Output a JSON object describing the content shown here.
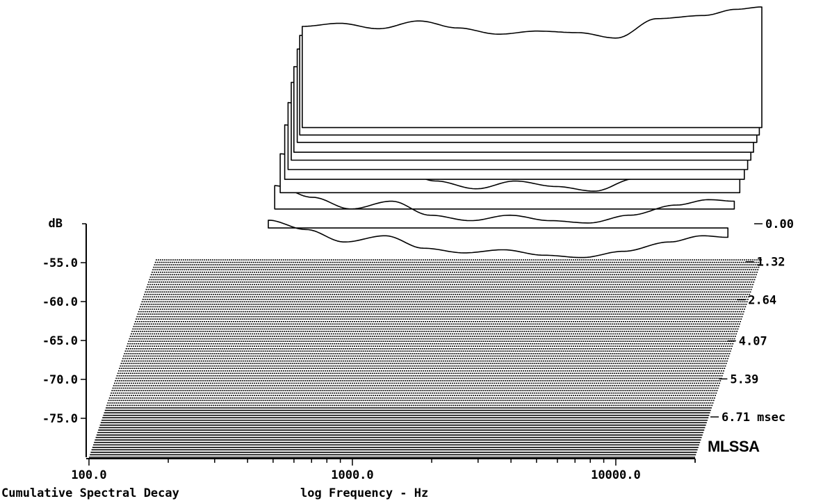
{
  "chart_data": {
    "type": "waterfall",
    "title": "Cumulative Spectral Decay",
    "xlabel": "log Frequency - Hz",
    "ylabel": "dB",
    "zlabel": "msec",
    "brand": "MLSSA",
    "x_scale": "log",
    "xlim": [
      100,
      20000
    ],
    "x_ticks": [
      {
        "value": 100,
        "label": "100.0"
      },
      {
        "value": 1000,
        "label": "1000.0"
      },
      {
        "value": 10000,
        "label": "10000.0"
      }
    ],
    "ylim": [
      -80,
      -50
    ],
    "y_ticks": [
      {
        "value": -55,
        "label": "-55.0"
      },
      {
        "value": -60,
        "label": "-60.0"
      },
      {
        "value": -65,
        "label": "-65.0"
      },
      {
        "value": -70,
        "label": "-70.0"
      },
      {
        "value": -75,
        "label": "-75.0"
      }
    ],
    "time_ticks": [
      {
        "value": 0.0,
        "label": "0.00"
      },
      {
        "value": 1.32,
        "label": "1.32"
      },
      {
        "value": 2.64,
        "label": "2.64"
      },
      {
        "value": 4.07,
        "label": "4.07"
      },
      {
        "value": 5.39,
        "label": "5.39"
      },
      {
        "value": 6.71,
        "label": "6.71 msec"
      }
    ],
    "time_range": [
      0,
      8.0
    ],
    "series": [
      {
        "time": 0.0,
        "x": [
          360,
          500,
          700,
          1000,
          1400,
          2000,
          2800,
          4000,
          5600,
          8000,
          12000,
          16000,
          20000
        ],
        "y": [
          -50.0,
          -49.6,
          -50.3,
          -49.3,
          -50.2,
          -51.0,
          -50.6,
          -50.8,
          -51.5,
          -49.0,
          -48.6,
          -47.8,
          -47.5
        ]
      },
      {
        "time": 0.3,
        "x": [
          360,
          500,
          700,
          1000,
          1400,
          2000,
          2800,
          4000,
          5600,
          8000,
          12000,
          16000,
          20000
        ],
        "y": [
          -50.2,
          -50.4,
          -51.4,
          -50.6,
          -52.1,
          -52.8,
          -51.9,
          -52.3,
          -53.0,
          -50.5,
          -50.8,
          -50.1,
          -50.0
        ]
      },
      {
        "time": 0.6,
        "x": [
          360,
          500,
          700,
          1000,
          1400,
          2000,
          2800,
          4000,
          5600,
          8000,
          12000,
          16000,
          20000
        ],
        "y": [
          -51.0,
          -51.5,
          -52.6,
          -51.6,
          -53.2,
          -54.0,
          -53.1,
          -53.5,
          -54.1,
          -51.5,
          -52.4,
          -51.5,
          -51.6
        ]
      },
      {
        "time": 1.0,
        "x": [
          360,
          500,
          700,
          1000,
          1400,
          2000,
          2800,
          4000,
          5600,
          8000,
          12000,
          16000,
          20000
        ],
        "y": [
          -52.0,
          -52.6,
          -54.2,
          -53.0,
          -55.0,
          -55.6,
          -54.6,
          -55.2,
          -55.8,
          -53.2,
          -54.6,
          -53.6,
          -54.0
        ]
      },
      {
        "time": 1.32,
        "x": [
          360,
          500,
          700,
          1000,
          1400,
          2000,
          2800,
          4000,
          5600,
          8000,
          12000,
          16000,
          20000
        ],
        "y": [
          -53.0,
          -54.0,
          -56.1,
          -54.8,
          -57.0,
          -57.6,
          -56.0,
          -56.8,
          -57.6,
          -55.0,
          -56.2,
          -55.0,
          -55.8
        ]
      },
      {
        "time": 1.7,
        "x": [
          360,
          500,
          700,
          1000,
          1400,
          2000,
          2800,
          4000,
          5600,
          8000,
          12000,
          16000,
          20000
        ],
        "y": [
          -54.4,
          -55.8,
          -58.2,
          -56.7,
          -58.8,
          -59.6,
          -57.8,
          -58.8,
          -59.5,
          -57.0,
          -57.8,
          -56.4,
          -57.4
        ]
      },
      {
        "time": 2.1,
        "x": [
          360,
          500,
          700,
          1000,
          1400,
          2000,
          2800,
          4000,
          5600,
          8000,
          12000,
          16000,
          20000
        ],
        "y": [
          -56.0,
          -57.8,
          -59.8,
          -58.2,
          -60.2,
          -61.0,
          -59.8,
          -60.6,
          -61.2,
          -59.0,
          -59.0,
          -58.0,
          -58.8
        ]
      },
      {
        "time": 2.64,
        "x": [
          360,
          500,
          700,
          1000,
          1400,
          2000,
          2800,
          4000,
          5600,
          8000,
          12000,
          16000,
          20000
        ],
        "y": [
          -58.0,
          -59.5,
          -61.0,
          -60.0,
          -61.5,
          -62.5,
          -61.5,
          -62.2,
          -62.8,
          -61.2,
          -60.4,
          -59.6,
          -60.0
        ]
      },
      {
        "time": 3.3,
        "x": [
          360,
          500,
          700,
          1000,
          1400,
          2000,
          2800,
          4000,
          5600,
          8000,
          12000,
          16000,
          20000
        ],
        "y": [
          -60.0,
          -61.5,
          -63.0,
          -62.0,
          -63.8,
          -64.5,
          -63.8,
          -64.5,
          -64.8,
          -63.8,
          -62.5,
          -61.8,
          -62.0
        ]
      },
      {
        "time": 4.07,
        "x": [
          360,
          500,
          700,
          1000,
          1400,
          2000,
          2800,
          4000,
          5600,
          8000,
          12000,
          16000,
          20000
        ],
        "y": [
          -62.0,
          -63.2,
          -64.8,
          -64.0,
          -65.6,
          -66.2,
          -65.8,
          -66.5,
          -66.8,
          -66.0,
          -64.8,
          -64.0,
          -64.2
        ]
      }
    ]
  }
}
